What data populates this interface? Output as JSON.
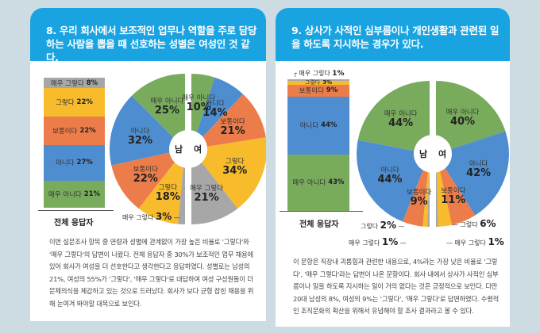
{
  "colors": {
    "매우 아니다": "#79ab5d",
    "아니다": "#4e8ed0",
    "보통이다": "#ec7c4a",
    "그렇다": "#f8bb2c",
    "매우 그렇다": "#a7a7a7",
    "header": "#19a3e1"
  },
  "chart_data": [
    {
      "type": "bar+pie",
      "title": "8. 우리 회사에서 보조적인 업무나 역할을 주로 담당하는 사람을 뽑을 때 선호하는 성별은 여성인 것 같다.",
      "total_label": "전체 응답자",
      "total": [
        {
          "label": "매우 그렇다",
          "value": 8
        },
        {
          "label": "그렇다",
          "value": 22
        },
        {
          "label": "보통이다",
          "value": 22
        },
        {
          "label": "아니다",
          "value": 27
        },
        {
          "label": "매우 아니다",
          "value": 21
        }
      ],
      "male_label": "남",
      "female_label": "여",
      "male": [
        {
          "label": "매우 아니다",
          "value": 25
        },
        {
          "label": "아니다",
          "value": 32
        },
        {
          "label": "보통이다",
          "value": 22
        },
        {
          "label": "그렇다",
          "value": 18
        },
        {
          "label": "매우 그렇다",
          "value": 3
        }
      ],
      "female": [
        {
          "label": "매우 아니다",
          "value": 10
        },
        {
          "label": "아니다",
          "value": 14
        },
        {
          "label": "보통이다",
          "value": 21
        },
        {
          "label": "그렇다",
          "value": 34
        },
        {
          "label": "매우 그렇다",
          "value": 21
        }
      ],
      "text": "이번 설문조사 항목 중 연령과 성별에 관계없이 가장 높은 비율로 '그렇다'와 '매우 그렇다'의 답변이 나왔다. 전체 응답자 중 30%가 보조적인 업무 채용에 있어 회사가 여성을 더 선호한다고 생각한다고 응답하였다. 성별로는 남성의 21%, 여성의 55%가 '그렇다', '매우 그렇다'로 대답하여 여성 구성원들이 더 문제의식을 체감하고 있는 것으로 드러났다. 회사가 보다 균형 잡힌 채용을 위해 눈여겨 봐야할 대목으로 보인다."
    },
    {
      "type": "bar+pie",
      "title": "9. 상사가 사적인 심부름이나 개인생활과 관련된 일을 하도록 지시하는 경우가 있다.",
      "total_label": "전체 응답자",
      "total": [
        {
          "label": "매우 그렇다",
          "value": 1
        },
        {
          "label": "그렇다",
          "value": 3
        },
        {
          "label": "보통이다",
          "value": 9
        },
        {
          "label": "아니다",
          "value": 44
        },
        {
          "label": "매우 아니다",
          "value": 43
        }
      ],
      "male_label": "남",
      "female_label": "여",
      "male": [
        {
          "label": "매우 아니다",
          "value": 44
        },
        {
          "label": "아니다",
          "value": 44
        },
        {
          "label": "보통이다",
          "value": 9
        },
        {
          "label": "그렇다",
          "value": 2
        },
        {
          "label": "매우 그렇다",
          "value": 1
        }
      ],
      "female": [
        {
          "label": "매우 아니다",
          "value": 40
        },
        {
          "label": "아니다",
          "value": 42
        },
        {
          "label": "보통이다",
          "value": 11
        },
        {
          "label": "그렇다",
          "value": 6
        },
        {
          "label": "매우 그렇다",
          "value": 1
        }
      ],
      "text": "이 문항은 직장내 괴롭힘과 관련한 내용으로, 4%라는 가장 낮은 비율로 '그렇다', '매우 그렇다'라는 답변이 나온 문항이다. 회사 내에서 상사가 사적인 심부름이나 일을 하도록 지시하는 일이 거의 없다는 것은 긍정적으로 보인다. 다만 20대 남성의 8%, 여성의 9%는 '그렇다', '매우 그렇다'로 답변하였다. 수평적인 조직문화의 확산을 위해서 유념해야 할 조사 결과라고 볼 수 있다."
    }
  ]
}
